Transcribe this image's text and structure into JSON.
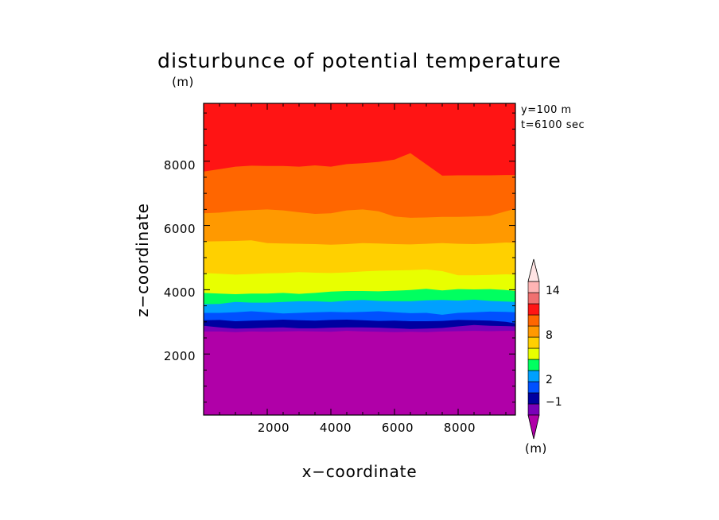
{
  "chart_data": {
    "type": "heatmap",
    "title": "disturbunce of potential temperature",
    "y_unit": "(m)",
    "xlabel": "x−coordinate",
    "ylabel": "z−coordinate",
    "annotations": [
      "y=100 m",
      "t=6100 sec"
    ],
    "xlim": [
      0,
      9800
    ],
    "ylim": [
      100,
      9800
    ],
    "x_ticks": [
      "2000",
      "4000",
      "6000",
      "8000"
    ],
    "y_ticks": [
      "2000",
      "4000",
      "6000",
      "8000"
    ],
    "colorbar": {
      "unit": "(m)",
      "labels": [
        "14",
        "8",
        "2",
        "−1"
      ],
      "bins": [
        {
          "lower": null,
          "upper": -2,
          "color": "#b000a8"
        },
        {
          "lower": -2,
          "upper": -1,
          "color": "#7a00b8"
        },
        {
          "lower": -1,
          "upper": 0,
          "color": "#0000a0"
        },
        {
          "lower": 0,
          "upper": 1,
          "color": "#0050ff"
        },
        {
          "lower": 1,
          "upper": 2,
          "color": "#00a0ff"
        },
        {
          "lower": 2,
          "upper": 3,
          "color": "#00ff60"
        },
        {
          "lower": 3,
          "upper": 4,
          "color": "#e8ff00"
        },
        {
          "lower": 4,
          "upper": 6,
          "color": "#ffd000"
        },
        {
          "lower": 6,
          "upper": 8,
          "color": "#ff9900"
        },
        {
          "lower": 8,
          "upper": 10,
          "color": "#ff6600"
        },
        {
          "lower": 10,
          "upper": 12,
          "color": "#ff1414"
        },
        {
          "lower": 12,
          "upper": 14,
          "color": "#f07070"
        },
        {
          "lower": 14,
          "upper": 16,
          "color": "#ffb4b4"
        },
        {
          "lower": 16,
          "upper": null,
          "color": "#ffe4e4"
        }
      ]
    },
    "contour_x": [
      0,
      500,
      1000,
      1500,
      2000,
      2500,
      3000,
      3500,
      4000,
      4500,
      5000,
      5500,
      6000,
      6500,
      7000,
      7500,
      8000,
      8500,
      9000,
      9500,
      9800
    ],
    "bands": [
      {
        "level": "<=-2",
        "color": "#b000a8",
        "top": [
          2700,
          2700,
          2680,
          2700,
          2690,
          2700,
          2710,
          2700,
          2690,
          2720,
          2700,
          2690,
          2680,
          2690,
          2680,
          2700,
          2710,
          2720,
          2710,
          2720,
          2720
        ]
      },
      {
        "level": "-2..-1",
        "color": "#7a00b8",
        "top": [
          2880,
          2830,
          2790,
          2800,
          2820,
          2830,
          2800,
          2800,
          2820,
          2830,
          2830,
          2820,
          2800,
          2780,
          2790,
          2810,
          2860,
          2900,
          2880,
          2870,
          2860
        ]
      },
      {
        "level": "-1..0",
        "color": "#0000a0",
        "top": [
          3050,
          3060,
          3020,
          3040,
          3050,
          3070,
          3050,
          3040,
          3060,
          3070,
          3050,
          3030,
          3040,
          3020,
          3020,
          3030,
          3060,
          3050,
          3040,
          3000,
          2950
        ]
      },
      {
        "level": "0..1",
        "color": "#0050ff",
        "top": [
          3280,
          3280,
          3300,
          3330,
          3300,
          3260,
          3280,
          3300,
          3310,
          3300,
          3310,
          3330,
          3300,
          3270,
          3280,
          3220,
          3280,
          3300,
          3320,
          3310,
          3300
        ]
      },
      {
        "level": "1..2",
        "color": "#00a0ff",
        "top": [
          3550,
          3560,
          3620,
          3600,
          3600,
          3620,
          3640,
          3640,
          3620,
          3660,
          3680,
          3650,
          3640,
          3640,
          3670,
          3680,
          3660,
          3690,
          3650,
          3630,
          3620
        ]
      },
      {
        "level": "2..3",
        "color": "#00ff60",
        "top": [
          3900,
          3880,
          3860,
          3880,
          3880,
          3900,
          3870,
          3900,
          3940,
          3960,
          3960,
          3950,
          3970,
          3990,
          4030,
          3980,
          4020,
          4010,
          4020,
          3990,
          3960
        ]
      },
      {
        "level": "3..4",
        "color": "#e8ff00",
        "top": [
          4520,
          4500,
          4470,
          4490,
          4510,
          4520,
          4550,
          4530,
          4520,
          4540,
          4570,
          4590,
          4600,
          4610,
          4630,
          4580,
          4450,
          4450,
          4460,
          4480,
          4470
        ]
      },
      {
        "level": "4..6",
        "color": "#ffd000",
        "top": [
          5500,
          5510,
          5520,
          5540,
          5450,
          5440,
          5430,
          5420,
          5400,
          5420,
          5450,
          5440,
          5420,
          5410,
          5430,
          5450,
          5430,
          5420,
          5440,
          5470,
          5460
        ]
      },
      {
        "level": "6..8",
        "color": "#ff9900",
        "top": [
          6380,
          6400,
          6450,
          6480,
          6500,
          6470,
          6410,
          6360,
          6380,
          6470,
          6500,
          6440,
          6280,
          6240,
          6250,
          6270,
          6270,
          6280,
          6300,
          6440,
          6520
        ]
      },
      {
        "level": "8..10",
        "color": "#ff6600",
        "top": [
          7680,
          7750,
          7830,
          7860,
          7850,
          7850,
          7830,
          7870,
          7830,
          7910,
          7940,
          7980,
          8050,
          8250,
          7900,
          7550,
          7560,
          7560,
          7560,
          7570,
          7570
        ]
      },
      {
        "level": "10..12",
        "color": "#ff1414",
        "top": [
          9800,
          9800,
          9800,
          9800,
          9800,
          9800,
          9800,
          9800,
          9800,
          9800,
          9800,
          9800,
          9800,
          9800,
          9800,
          9800,
          9800,
          9800,
          9800,
          9800,
          9800
        ]
      }
    ]
  }
}
